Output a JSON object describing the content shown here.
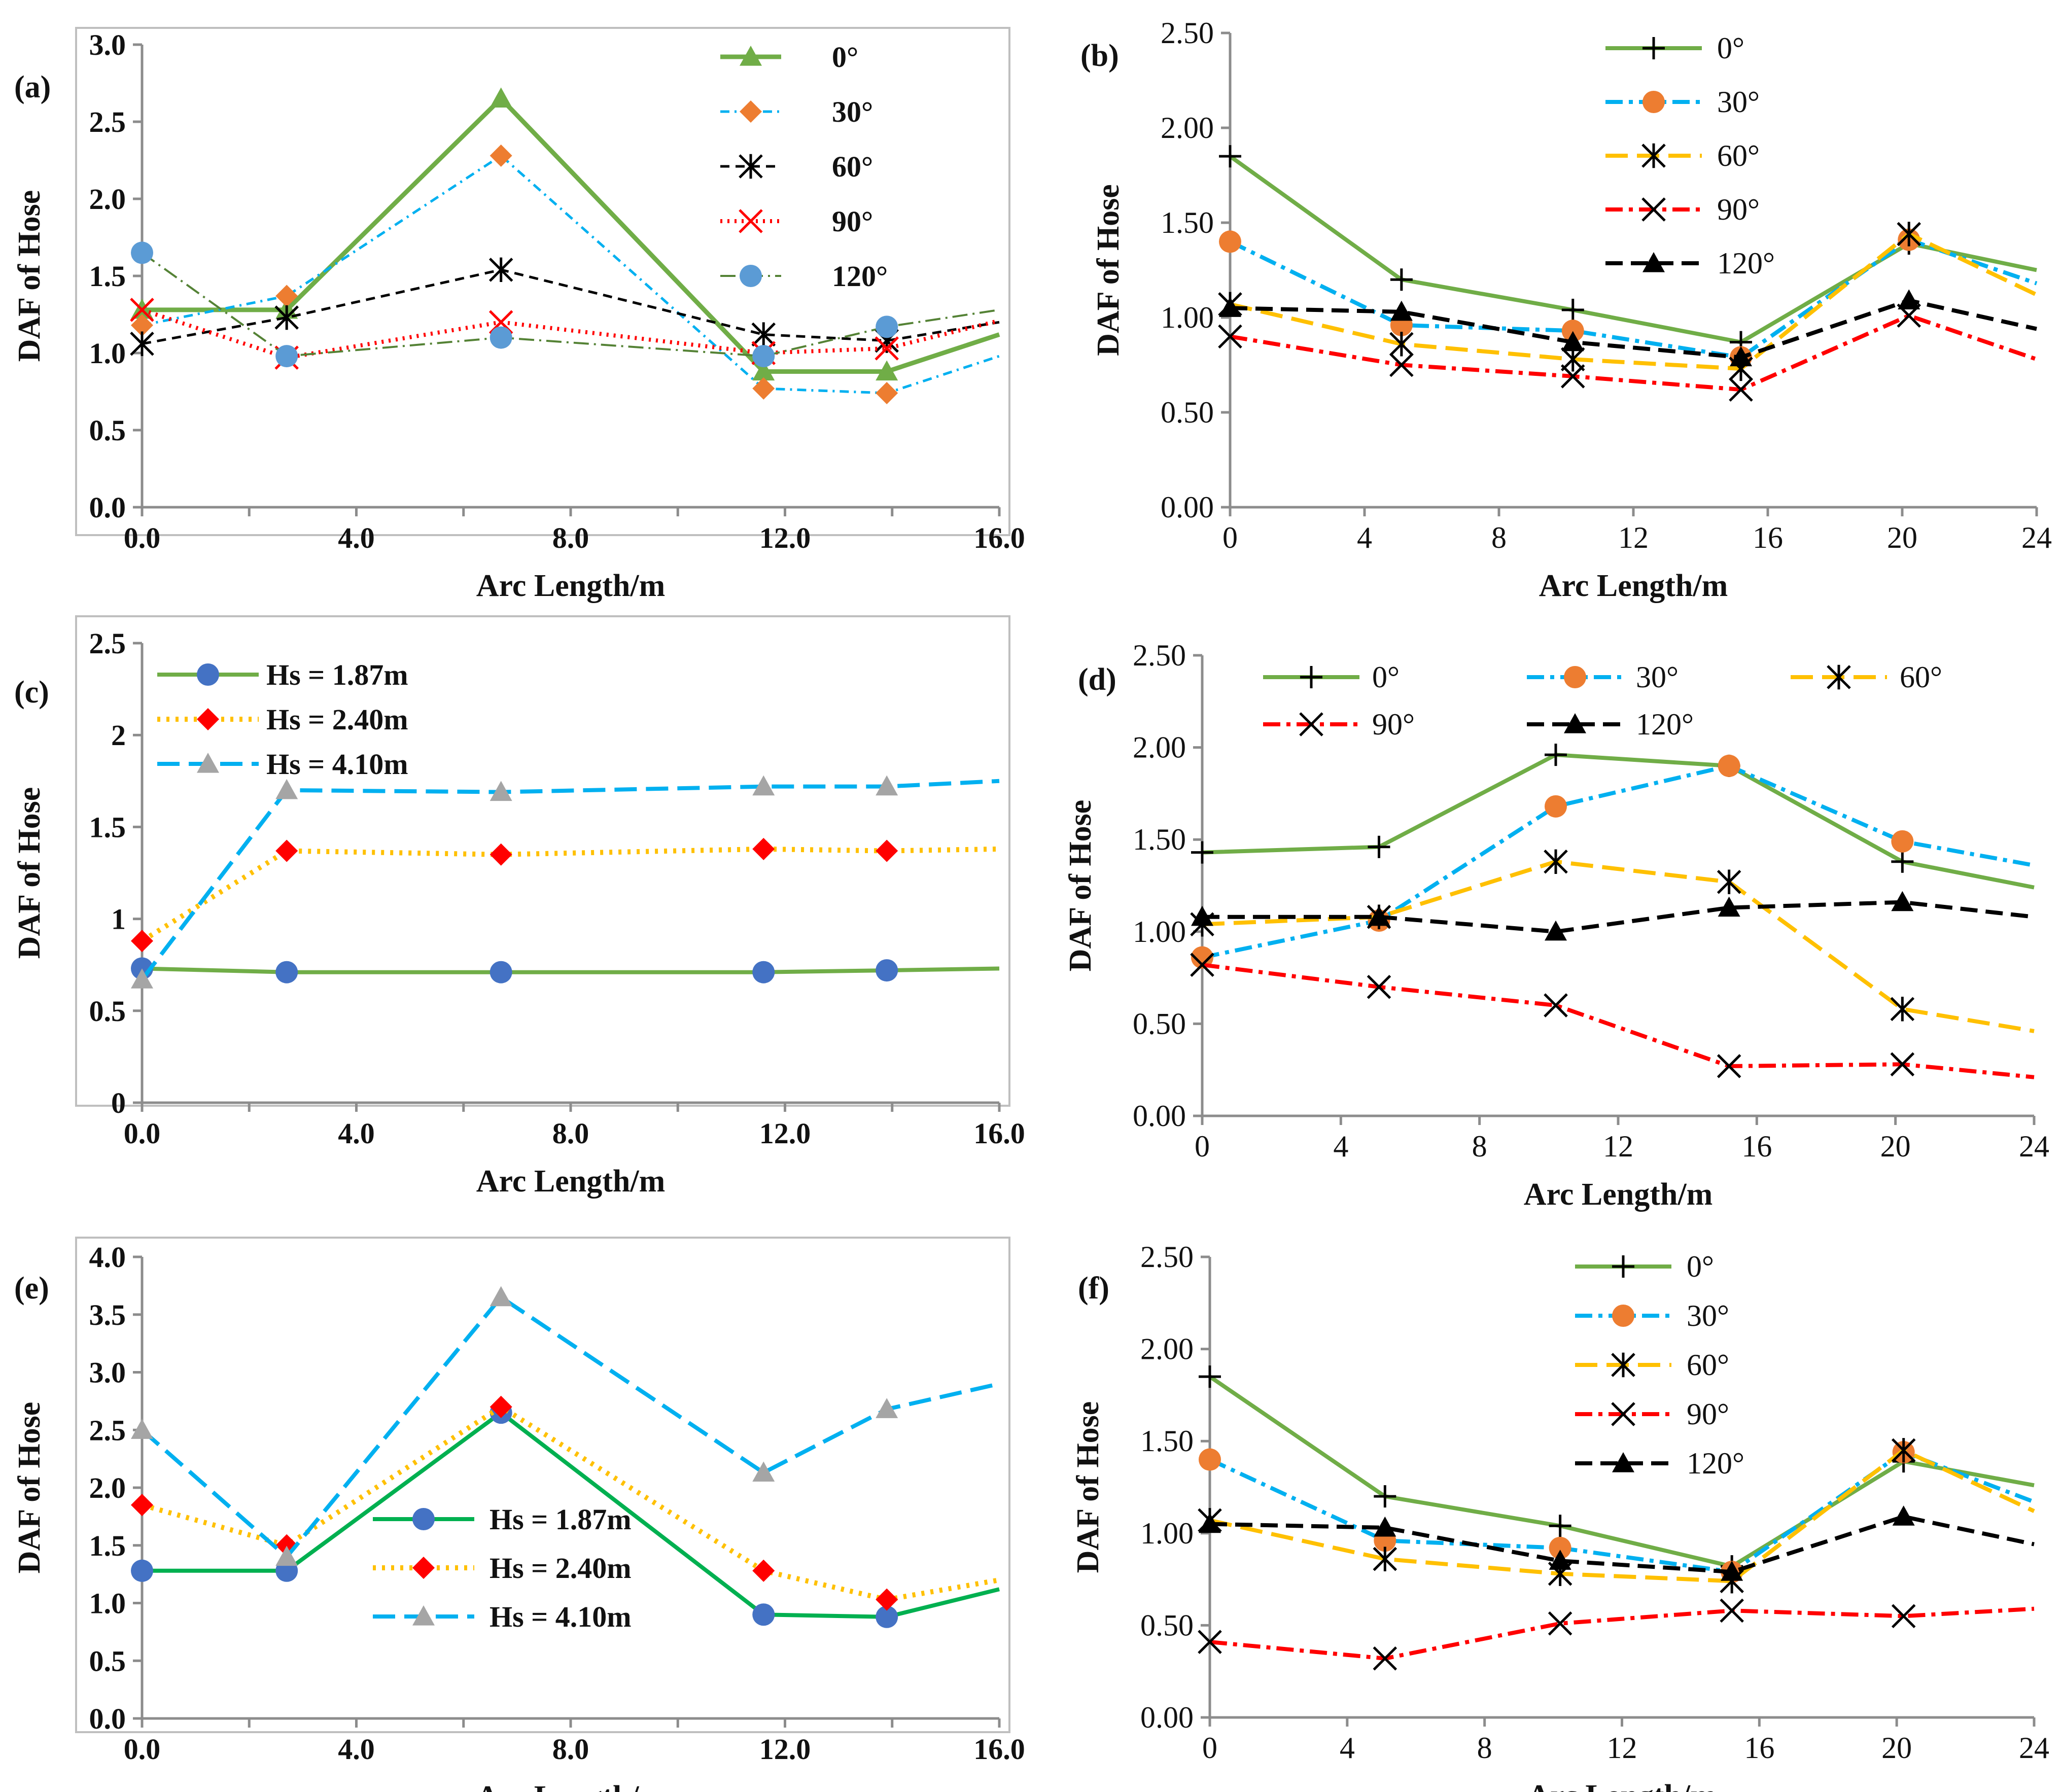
{
  "figure": {
    "colors": {
      "green": "#70AD47",
      "blue_light": "#00B0F0",
      "orange": "#ED7D31",
      "gold": "#FFC000",
      "red": "#FF0000",
      "black": "#000000",
      "steel": "#4472C4",
      "grey": "#A5A5A5",
      "teal_blue": "#5B9BD5"
    }
  },
  "chart_data": [
    {
      "id": "a",
      "type": "line",
      "panel_label": "(a)",
      "xlabel": "Arc Length/m",
      "ylabel": "DAF of Hose",
      "xlim": [
        0,
        16
      ],
      "ylim": [
        0,
        3
      ],
      "x_ticks": [
        "0.0",
        "4.0",
        "8.0",
        "12.0",
        "16.0"
      ],
      "y_ticks": [
        "0.0",
        "0.5",
        "1.0",
        "1.5",
        "2.0",
        "2.5",
        "3.0"
      ],
      "x": [
        0,
        2.7,
        6.7,
        11.6,
        13.9,
        16
      ],
      "legend_position": "top-right",
      "series": [
        {
          "name": "0°",
          "values": [
            1.28,
            1.28,
            2.65,
            0.88,
            0.88,
            1.12
          ],
          "color": "#70AD47",
          "dash": "",
          "marker": "triangle",
          "width": 9
        },
        {
          "name": "30°",
          "values": [
            1.18,
            1.37,
            2.28,
            0.77,
            0.74,
            0.98
          ],
          "color": "#00B0F0",
          "dash": "18 10 4 10",
          "marker": "diamond",
          "marker_color": "#ED7D31",
          "width": 5
        },
        {
          "name": "60°",
          "values": [
            1.06,
            1.23,
            1.54,
            1.12,
            1.08,
            1.2
          ],
          "color": "#000000",
          "dash": "18 12",
          "marker": "asterisk",
          "width": 5
        },
        {
          "name": "90°",
          "values": [
            1.28,
            0.97,
            1.2,
            1.0,
            1.03,
            1.21
          ],
          "color": "#FF0000",
          "dash": "4 10",
          "marker": "x",
          "width": 8
        },
        {
          "name": "120°",
          "values": [
            1.65,
            0.98,
            1.1,
            0.98,
            1.17,
            1.28
          ],
          "color": "#548235",
          "dash": "30 10 4 10",
          "marker": "circle",
          "marker_color": "#5B9BD5",
          "width": 4
        }
      ]
    },
    {
      "id": "b",
      "type": "line",
      "panel_label": "(b)",
      "xlabel": "Arc Length/m",
      "ylabel": "DAF of Hose",
      "xlim": [
        0,
        24
      ],
      "ylim": [
        0,
        2.5
      ],
      "x_ticks": [
        "0",
        "4",
        "8",
        "12",
        "16",
        "20",
        "24"
      ],
      "y_ticks": [
        "0.00",
        "0.50",
        "1.00",
        "1.50",
        "2.00",
        "2.50"
      ],
      "x": [
        0,
        5.1,
        10.2,
        15.2,
        20.2,
        24
      ],
      "legend_position": "top",
      "series": [
        {
          "name": "0°",
          "values": [
            1.85,
            1.2,
            1.04,
            0.87,
            1.39,
            1.25
          ],
          "color": "#70AD47",
          "dash": "",
          "marker": "plus",
          "marker_color": "#000000",
          "width": 8
        },
        {
          "name": "30°",
          "values": [
            1.4,
            0.96,
            0.93,
            0.79,
            1.41,
            1.18
          ],
          "color": "#00B0F0",
          "dash": "34 12 8 12",
          "marker": "circle",
          "marker_color": "#ED7D31",
          "width": 8
        },
        {
          "name": "60°",
          "values": [
            1.07,
            0.86,
            0.78,
            0.73,
            1.44,
            1.12
          ],
          "color": "#FFC000",
          "dash": "44 18",
          "marker": "asterisk",
          "marker_color": "#000000",
          "width": 8
        },
        {
          "name": "90°",
          "values": [
            0.9,
            0.75,
            0.69,
            0.62,
            1.01,
            0.78
          ],
          "color": "#FF0000",
          "dash": "34 12 8 12",
          "marker": "x",
          "marker_color": "#000000",
          "width": 8
        },
        {
          "name": "120°",
          "values": [
            1.05,
            1.03,
            0.87,
            0.79,
            1.09,
            0.94
          ],
          "color": "#000000",
          "dash": "34 16",
          "marker": "triangle",
          "marker_color": "#000000",
          "width": 8
        }
      ]
    },
    {
      "id": "c",
      "type": "line",
      "panel_label": "(c)",
      "xlabel": "Arc Length/m",
      "ylabel": "DAF of Hose",
      "xlim": [
        0,
        16
      ],
      "ylim": [
        0,
        2.5
      ],
      "x_ticks": [
        "0.0",
        "4.0",
        "8.0",
        "12.0",
        "16.0"
      ],
      "y_ticks": [
        "0",
        "0.5",
        "1",
        "1.5",
        "2",
        "2.5"
      ],
      "x": [
        0,
        2.7,
        6.7,
        11.6,
        13.9,
        16
      ],
      "legend_position": "top-left",
      "series": [
        {
          "name": "Hs = 1.87m",
          "values": [
            0.73,
            0.71,
            0.71,
            0.71,
            0.72,
            0.73
          ],
          "color": "#70AD47",
          "dash": "",
          "marker": "circle",
          "marker_color": "#4472C4",
          "width": 8
        },
        {
          "name": "Hs = 2.40m",
          "values": [
            0.88,
            1.37,
            1.35,
            1.38,
            1.37,
            1.38
          ],
          "color": "#FFC000",
          "dash": "6 12",
          "marker": "diamond",
          "marker_color": "#FF0000",
          "width": 10
        },
        {
          "name": "Hs = 4.10m",
          "values": [
            0.67,
            1.7,
            1.69,
            1.72,
            1.72,
            1.75
          ],
          "color": "#00B0F0",
          "dash": "44 18",
          "marker": "triangle",
          "marker_color": "#A5A5A5",
          "width": 8
        }
      ]
    },
    {
      "id": "d",
      "type": "line",
      "panel_label": "(d)",
      "xlabel": "Arc Length/m",
      "ylabel": "DAF of Hose",
      "xlim": [
        0,
        24
      ],
      "ylim": [
        0,
        2.5
      ],
      "x_ticks": [
        "0",
        "4",
        "8",
        "12",
        "16",
        "20",
        "24"
      ],
      "y_ticks": [
        "0.00",
        "0.50",
        "1.00",
        "1.50",
        "2.00",
        "2.50"
      ],
      "x": [
        0,
        5.1,
        10.2,
        15.2,
        20.2,
        24
      ],
      "legend_position": "top",
      "series": [
        {
          "name": "0°",
          "values": [
            1.43,
            1.46,
            1.96,
            1.9,
            1.38,
            1.24
          ],
          "color": "#70AD47",
          "dash": "",
          "marker": "plus",
          "marker_color": "#000000",
          "width": 8
        },
        {
          "name": "30°",
          "values": [
            0.86,
            1.06,
            1.68,
            1.9,
            1.49,
            1.36
          ],
          "color": "#00B0F0",
          "dash": "34 12 8 12",
          "marker": "circle",
          "marker_color": "#ED7D31",
          "width": 8
        },
        {
          "name": "60°",
          "values": [
            1.04,
            1.08,
            1.38,
            1.27,
            0.58,
            0.46
          ],
          "color": "#FFC000",
          "dash": "44 18",
          "marker": "asterisk",
          "marker_color": "#000000",
          "width": 8
        },
        {
          "name": "90°",
          "values": [
            0.82,
            0.7,
            0.6,
            0.27,
            0.28,
            0.21
          ],
          "color": "#FF0000",
          "dash": "34 12 8 12",
          "marker": "x",
          "marker_color": "#000000",
          "width": 8
        },
        {
          "name": "120°",
          "values": [
            1.08,
            1.08,
            1.0,
            1.13,
            1.16,
            1.08
          ],
          "color": "#000000",
          "dash": "34 16",
          "marker": "triangle",
          "marker_color": "#000000",
          "width": 8
        }
      ]
    },
    {
      "id": "e",
      "type": "line",
      "panel_label": "(e)",
      "xlabel": "Arc Length/m",
      "ylabel": "DAF of Hose",
      "xlim": [
        0,
        16
      ],
      "ylim": [
        0,
        4
      ],
      "x_ticks": [
        "0.0",
        "4.0",
        "8.0",
        "12.0",
        "16.0"
      ],
      "y_ticks": [
        "0.0",
        "0.5",
        "1.0",
        "1.5",
        "2.0",
        "2.5",
        "3.0",
        "3.5",
        "4.0"
      ],
      "x": [
        0,
        2.7,
        6.7,
        11.6,
        13.9,
        16
      ],
      "legend_position": "bottom-center",
      "series": [
        {
          "name": "Hs = 1.87m",
          "values": [
            1.28,
            1.28,
            2.65,
            0.9,
            0.88,
            1.12
          ],
          "color": "#00B050",
          "dash": "",
          "marker": "circle",
          "marker_color": "#4472C4",
          "width": 8
        },
        {
          "name": "Hs = 2.40m",
          "values": [
            1.85,
            1.5,
            2.7,
            1.28,
            1.03,
            1.2
          ],
          "color": "#FFC000",
          "dash": "6 12",
          "marker": "diamond",
          "marker_color": "#FF0000",
          "width": 10
        },
        {
          "name": "Hs = 4.10m",
          "values": [
            2.5,
            1.4,
            3.65,
            2.13,
            2.68,
            2.9
          ],
          "color": "#00B0F0",
          "dash": "44 18",
          "marker": "triangle",
          "marker_color": "#A5A5A5",
          "width": 8
        }
      ]
    },
    {
      "id": "f",
      "type": "line",
      "panel_label": "(f)",
      "xlabel": "Arc Length/m",
      "ylabel": "DAF of Hose",
      "xlim": [
        0,
        24
      ],
      "ylim": [
        0,
        2.5
      ],
      "x_ticks": [
        "0",
        "4",
        "8",
        "12",
        "16",
        "20",
        "24"
      ],
      "y_ticks": [
        "0.00",
        "0.50",
        "1.00",
        "1.50",
        "2.00",
        "2.50"
      ],
      "x": [
        0,
        5.1,
        10.2,
        15.2,
        20.2,
        24
      ],
      "legend_position": "top",
      "series": [
        {
          "name": "0°",
          "values": [
            1.85,
            1.2,
            1.04,
            0.82,
            1.39,
            1.26
          ],
          "color": "#70AD47",
          "dash": "",
          "marker": "plus",
          "marker_color": "#000000",
          "width": 8
        },
        {
          "name": "30°",
          "values": [
            1.4,
            0.96,
            0.92,
            0.79,
            1.44,
            1.17
          ],
          "color": "#00B0F0",
          "dash": "34 12 8 12",
          "marker": "circle",
          "marker_color": "#ED7D31",
          "width": 8
        },
        {
          "name": "60°",
          "values": [
            1.07,
            0.86,
            0.78,
            0.74,
            1.45,
            1.12
          ],
          "color": "#FFC000",
          "dash": "44 18",
          "marker": "asterisk",
          "marker_color": "#000000",
          "width": 8
        },
        {
          "name": "90°",
          "values": [
            0.41,
            0.32,
            0.51,
            0.58,
            0.55,
            0.59
          ],
          "color": "#FF0000",
          "dash": "34 12 8 12",
          "marker": "x",
          "marker_color": "#000000",
          "width": 8
        },
        {
          "name": "120°",
          "values": [
            1.05,
            1.03,
            0.85,
            0.79,
            1.09,
            0.94
          ],
          "color": "#000000",
          "dash": "34 16",
          "marker": "triangle",
          "marker_color": "#000000",
          "width": 8
        }
      ]
    }
  ]
}
